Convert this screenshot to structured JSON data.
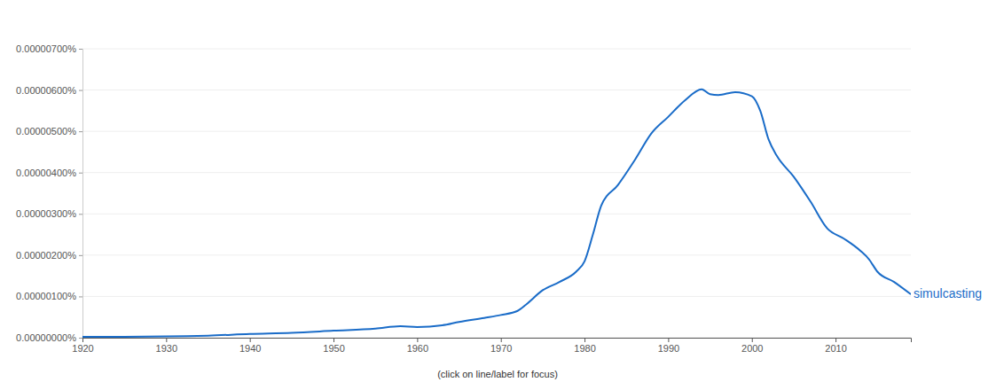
{
  "chart_data": {
    "type": "line",
    "note": "(click on line/label for focus)",
    "x": [
      1920,
      1930,
      1935,
      1940,
      1945,
      1950,
      1955,
      1958,
      1960,
      1963,
      1965,
      1968,
      1970,
      1972,
      1973,
      1975,
      1977,
      1979,
      1980,
      1981,
      1982,
      1984,
      1986,
      1988,
      1990,
      1992,
      1994,
      1995,
      1996,
      1998,
      2000,
      2001,
      2002,
      2003,
      2005,
      2007,
      2009,
      2011,
      2013,
      2014,
      2015,
      2017,
      2019
    ],
    "series": [
      {
        "name": "simulcasting",
        "color": "#1a6cc8",
        "values": [
          2e-08,
          3e-08,
          5e-08,
          9e-08,
          1.2e-07,
          1.7e-07,
          2.2e-07,
          2.8e-07,
          2.6e-07,
          3e-07,
          3.8e-07,
          4.8e-07,
          5.5e-07,
          6.5e-07,
          8e-07,
          1.15e-06,
          1.35e-06,
          1.6e-06,
          1.85e-06,
          2.5e-06,
          3.2e-06,
          3.7e-06,
          4.3e-06,
          4.95e-06,
          5.35e-06,
          5.75e-06,
          6.02e-06,
          5.9e-06,
          5.88e-06,
          5.95e-06,
          5.85e-06,
          5.5e-06,
          4.8e-06,
          4.4e-06,
          3.9e-06,
          3.3e-06,
          2.65e-06,
          2.4e-06,
          2.1e-06,
          1.9e-06,
          1.6e-06,
          1.35e-06,
          1.05e-06
        ]
      }
    ],
    "xlim": [
      1920,
      2019
    ],
    "xticks": [
      1920,
      1930,
      1940,
      1950,
      1960,
      1970,
      1980,
      1990,
      2000,
      2010
    ],
    "ylim": [
      0,
      7e-06
    ],
    "yticks": [
      {
        "value": 0,
        "label": "0.00000000%"
      },
      {
        "value": 1e-06,
        "label": "0.00000100%"
      },
      {
        "value": 2e-06,
        "label": "0.00000200%"
      },
      {
        "value": 3e-06,
        "label": "0.00000300%"
      },
      {
        "value": 4e-06,
        "label": "0.00000400%"
      },
      {
        "value": 5e-06,
        "label": "0.00000500%"
      },
      {
        "value": 6e-06,
        "label": "0.00000600%"
      },
      {
        "value": 7e-06,
        "label": "0.00000700%"
      }
    ],
    "grid": true
  }
}
